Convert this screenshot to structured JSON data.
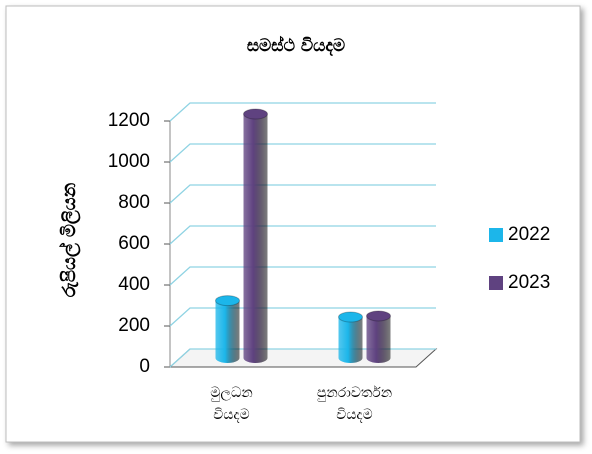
{
  "chart_data": {
    "type": "bar3d",
    "title": "සමස්ථ වියදම",
    "y_label": "රුපියල් මිලියන",
    "categories": [
      [
        "මුලධන",
        "වියදම"
      ],
      [
        "පුනරාවර්තන",
        "වියදම"
      ]
    ],
    "series": [
      {
        "name": "2022",
        "color": "#1cb6ea",
        "values": [
          280,
          200
        ]
      },
      {
        "name": "2023",
        "color": "#5f4280",
        "values": [
          1190,
          205
        ]
      }
    ],
    "ylim": [
      0,
      1200
    ],
    "yticks": [
      0,
      200,
      400,
      600,
      800,
      1000,
      1200
    ],
    "grid": true,
    "legend": "right"
  }
}
